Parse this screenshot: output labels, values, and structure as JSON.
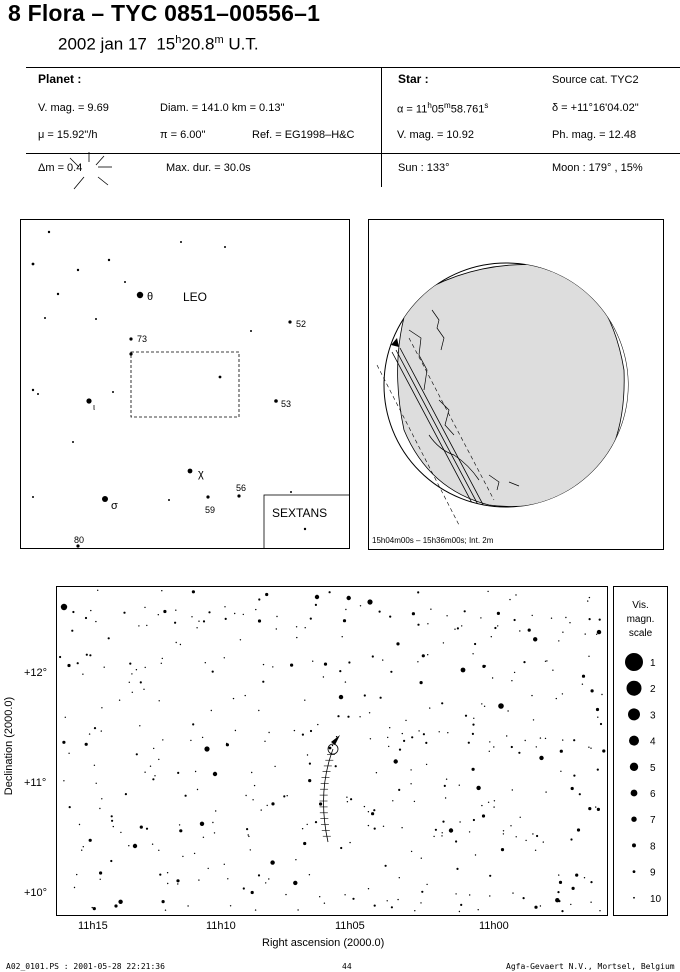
{
  "title": "8 Flora  –  TYC 0851–00556–1",
  "subtitle": {
    "date": "2002 jan 17",
    "hour": "15",
    "h": "h",
    "min": "20.8",
    "m": "m",
    "ut": "U.T."
  },
  "planet": {
    "header": "Planet :",
    "vmag": "V. mag. =  9.69",
    "diam": "Diam. = 141.0 km = 0.13\"",
    "mu": "μ =  15.92\"/h",
    "pi": "π =  6.00\"",
    "ref": "Ref. = EG1998–H&C"
  },
  "star": {
    "header": "Star :",
    "source": "Source cat.  TYC2",
    "alpha_pre": "α = 11",
    "alpha_h": "h",
    "alpha_mid": "05",
    "alpha_m": "m",
    "alpha_sec": "58.761",
    "alpha_s": "s",
    "delta": "δ = +11°16'04.02\"",
    "vmag": "V. mag. = 10.92",
    "phmag": "Ph. mag. = 12.48"
  },
  "event": {
    "dm": "Δm = 0.4",
    "maxdur": "Max. dur. = 30.0s",
    "sun": "Sun : 133°",
    "moon": "Moon : 179° , 15%"
  },
  "finder": {
    "leo": "LEO",
    "sextans": "SEXTANS",
    "labels": [
      {
        "text": "θ",
        "id": "theta"
      },
      {
        "text": "52",
        "id": "n52"
      },
      {
        "text": "73",
        "id": "n73"
      },
      {
        "text": "ι",
        "id": "iota"
      },
      {
        "text": "53",
        "id": "n53"
      },
      {
        "text": "χ",
        "id": "chi"
      },
      {
        "text": "56",
        "id": "n56"
      },
      {
        "text": "σ",
        "id": "sigma"
      },
      {
        "text": "59",
        "id": "n59"
      },
      {
        "text": "80",
        "id": "n80"
      }
    ]
  },
  "globe": {
    "caption": "15h04m00s – 15h36m00s; Int.  2m"
  },
  "chart": {
    "ylabel": "Declination (2000.0)",
    "xlabel": "Right ascension (2000.0)",
    "yticks": [
      "+12°",
      "+11°",
      "+10°"
    ],
    "xticks": [
      "11h15",
      "11h10",
      "11h05",
      "11h00"
    ]
  },
  "scale": {
    "title": [
      "Vis.",
      "magn.",
      "scale"
    ],
    "mags": [
      "1",
      "2",
      "3",
      "4",
      "5",
      "6",
      "7",
      "8",
      "9",
      "10"
    ]
  },
  "footer": {
    "left": "A02_0101.PS : 2001-05-28 22:21:36",
    "page": "44",
    "right": "Agfa-Gevaert N.V., Mortsel, Belgium"
  }
}
